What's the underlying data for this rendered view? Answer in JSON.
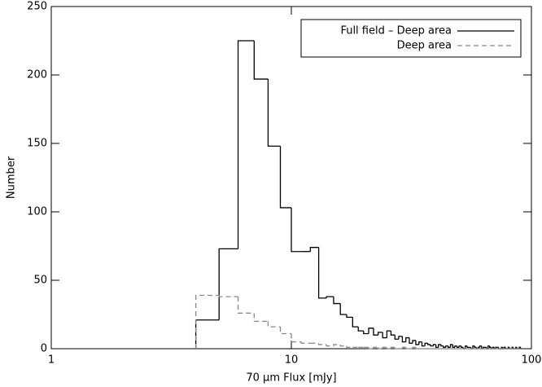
{
  "chart_data": {
    "type": "histogram",
    "xlabel": "70 μm Flux [mJy]",
    "ylabel": "Number",
    "xscale": "log",
    "xlim": [
      1,
      100
    ],
    "xticks": [
      1,
      10,
      100
    ],
    "ylim": [
      0,
      250
    ],
    "yticks": [
      0,
      50,
      100,
      150,
      200,
      250
    ],
    "legend_position": "upper right",
    "bins": [
      4,
      5,
      6,
      7,
      8,
      9,
      10,
      11,
      12,
      13,
      14,
      15,
      16,
      17,
      18,
      19,
      20,
      21,
      22,
      23,
      24,
      25,
      26,
      27,
      28,
      29,
      30,
      31,
      32,
      33,
      34,
      35,
      36,
      37,
      38,
      39,
      40,
      41,
      42,
      43,
      44,
      45,
      46,
      47,
      48,
      49,
      50,
      51,
      52,
      53,
      54,
      55,
      56,
      57,
      58,
      59,
      60,
      61,
      62,
      63,
      64,
      65,
      66,
      67,
      68,
      69,
      70,
      71,
      72,
      73,
      74,
      75,
      76,
      77,
      78,
      79,
      80,
      81,
      82,
      83,
      84,
      85,
      86,
      87,
      88,
      89,
      90
    ],
    "series": [
      {
        "name": "Full field – Deep area",
        "color": "#000000",
        "dash": false,
        "values": [
          21,
          73,
          225,
          197,
          148,
          103,
          71,
          71,
          74,
          37,
          38,
          33,
          25,
          23,
          16,
          13,
          11,
          15,
          10,
          12,
          8,
          13,
          10,
          7,
          9,
          5,
          8,
          4,
          6,
          3,
          5,
          2,
          4,
          3,
          2,
          3,
          1,
          3,
          2,
          1,
          2,
          1,
          3,
          1,
          2,
          1,
          2,
          1,
          0,
          2,
          1,
          1,
          0,
          2,
          1,
          0,
          1,
          2,
          0,
          1,
          1,
          0,
          2,
          1,
          0,
          1,
          0,
          1,
          1,
          0,
          0,
          1,
          0,
          1,
          0,
          0,
          1,
          0,
          0,
          1,
          0,
          0,
          1,
          0,
          0,
          1
        ]
      },
      {
        "name": "Deep area",
        "color": "#888888",
        "dash": true,
        "values": [
          39,
          38,
          26,
          20,
          16,
          11,
          5,
          4,
          4,
          3,
          2,
          3,
          2,
          1,
          1,
          1,
          1,
          0,
          1,
          0,
          1,
          0,
          1,
          0,
          0,
          1,
          0,
          0,
          1,
          0,
          0,
          0,
          0,
          0,
          0,
          0,
          0,
          0,
          0,
          0,
          0,
          0,
          0,
          0,
          0,
          0,
          0,
          0,
          0,
          0,
          0,
          0,
          0,
          0,
          0,
          0,
          0,
          0,
          0,
          0,
          0,
          0,
          0,
          0,
          0,
          0,
          0,
          0,
          0,
          0,
          0,
          0,
          0,
          0,
          0,
          0,
          0,
          0,
          0,
          0,
          0,
          0,
          0,
          0,
          0,
          0
        ]
      }
    ]
  }
}
